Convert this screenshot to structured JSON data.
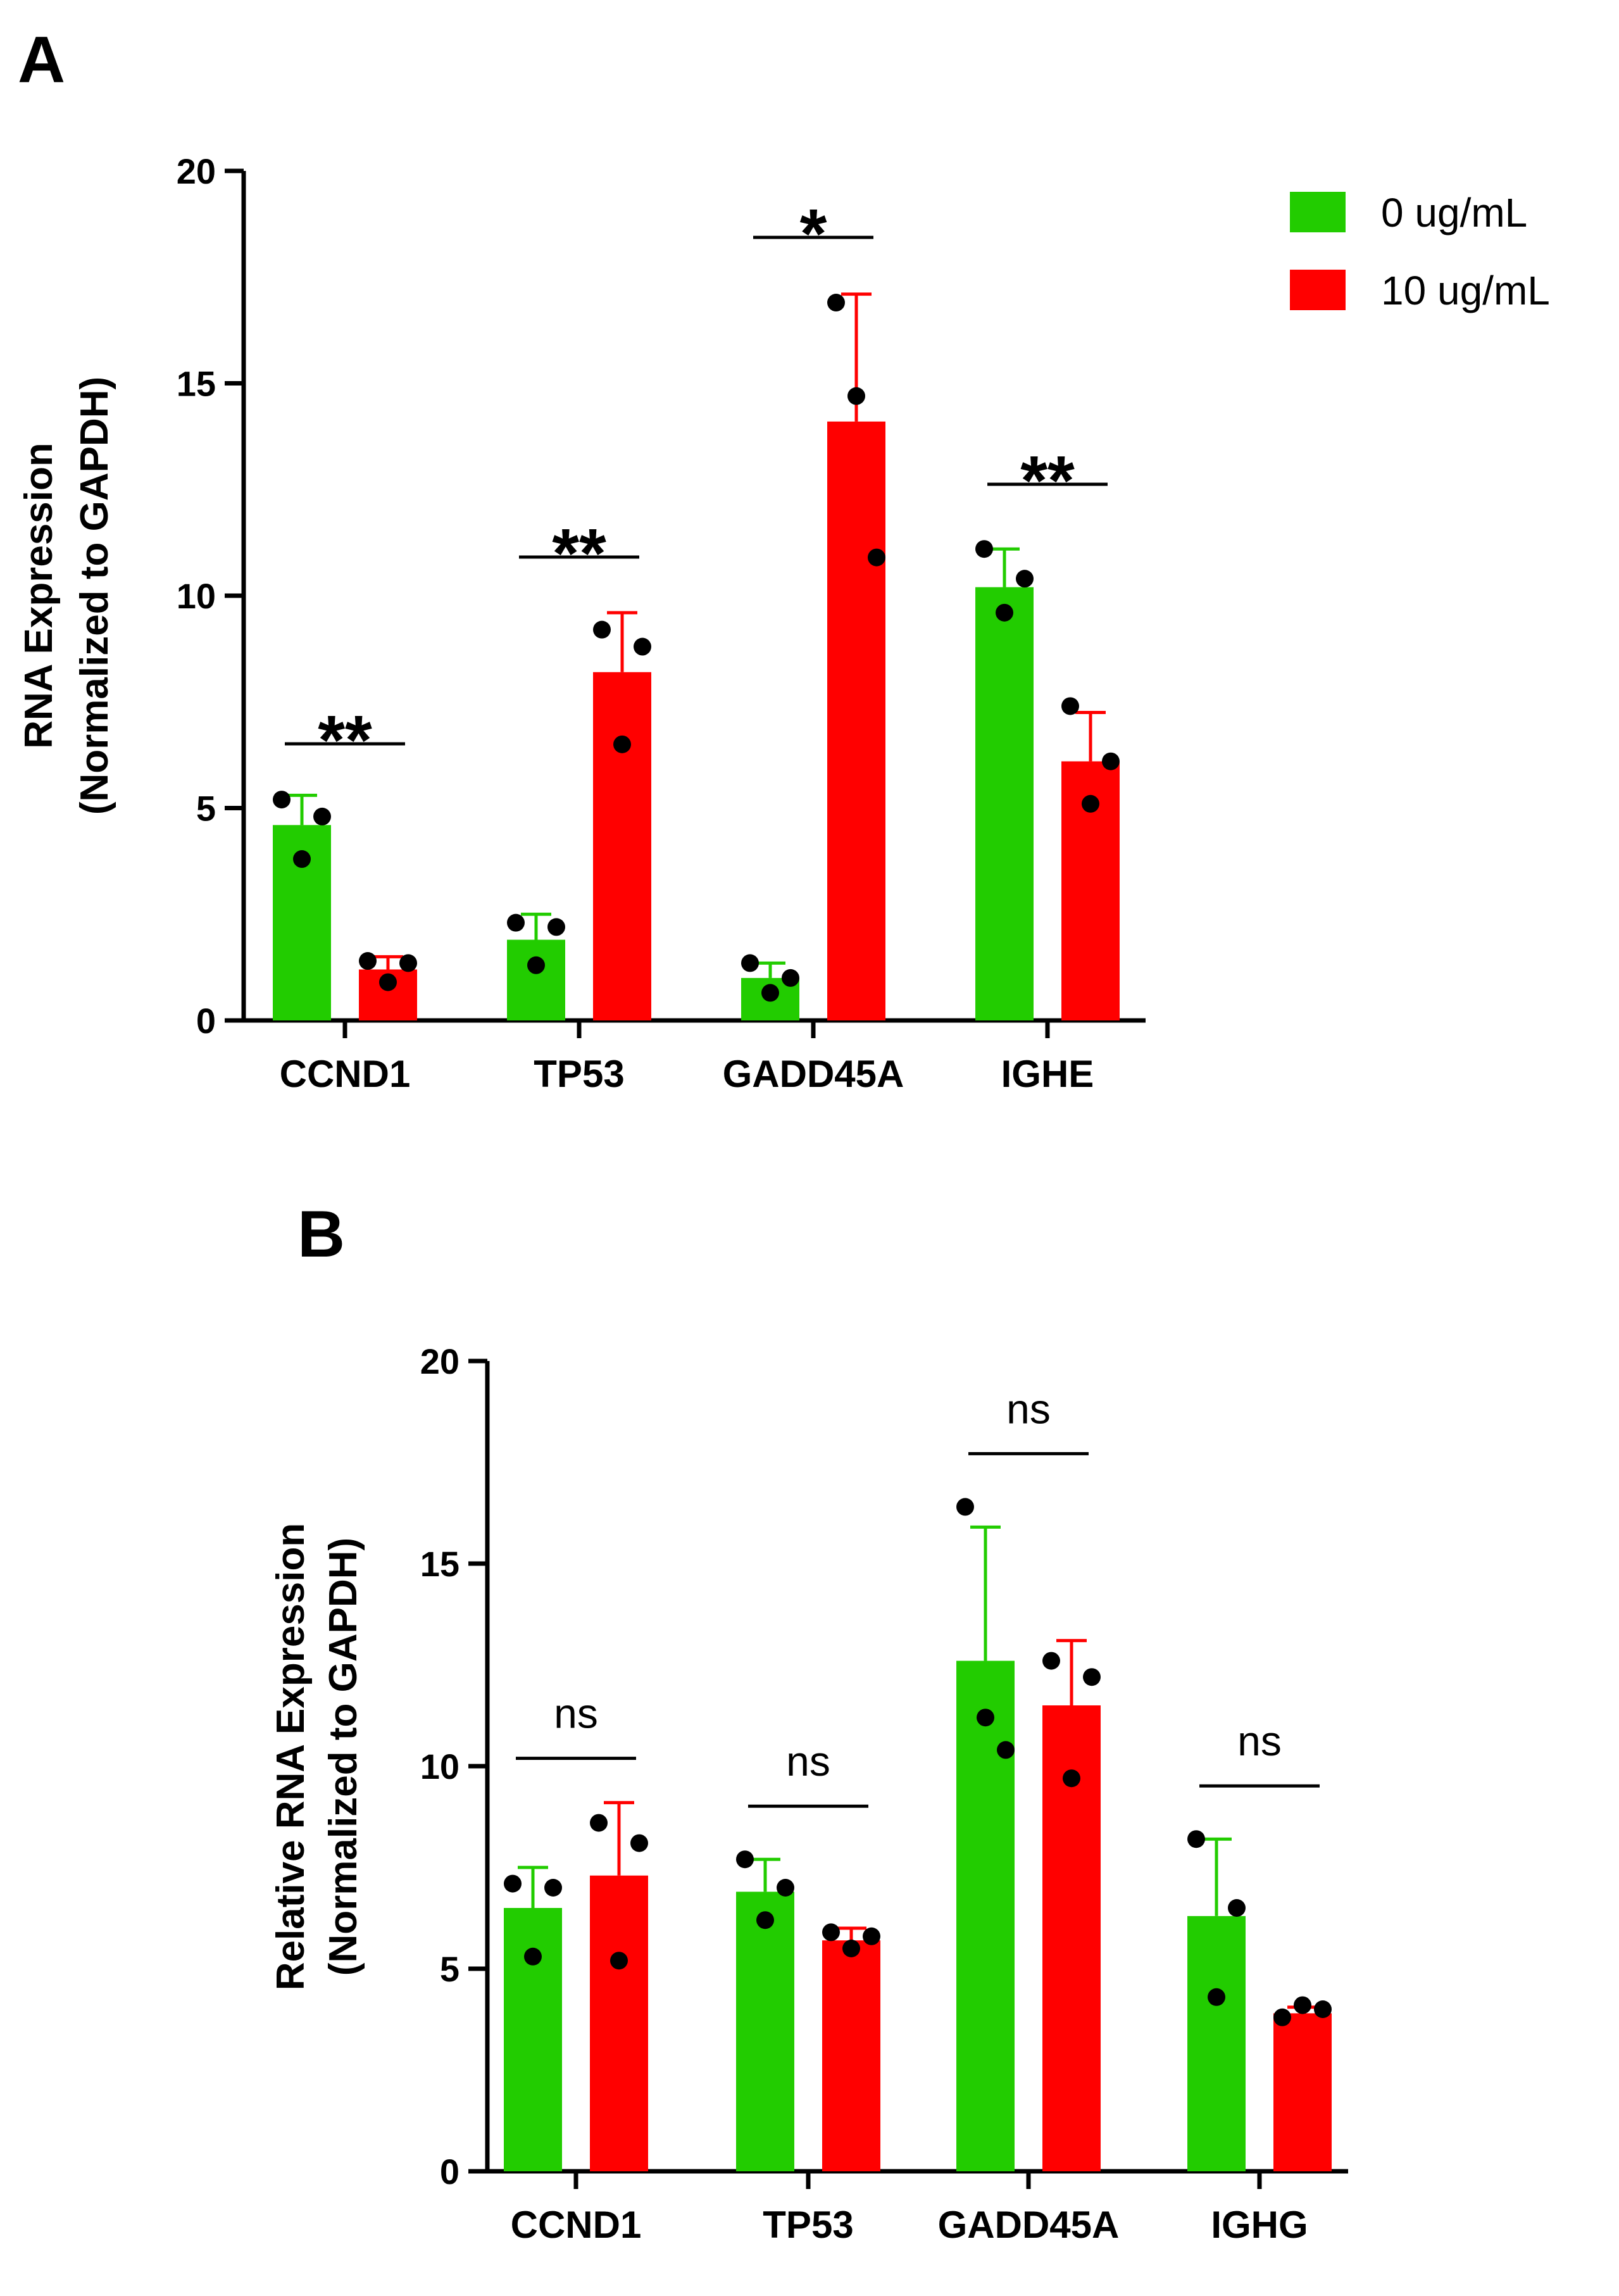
{
  "legend": {
    "items": [
      {
        "label": "0 ug/mL",
        "color": "#22cc00"
      },
      {
        "label": "10 ug/mL",
        "color": "#ff0000"
      }
    ]
  },
  "chart_data": [
    {
      "panel": "A",
      "type": "bar",
      "ylabel_line1": "RNA Expression",
      "ylabel_line2": "(Normalized to GAPDH)",
      "ylim": [
        0,
        20
      ],
      "yticks": [
        0,
        5,
        10,
        15,
        20
      ],
      "categories": [
        "CCND1",
        "TP53",
        "GADD45A",
        "IGHE"
      ],
      "series": [
        {
          "name": "0 ug/mL",
          "color": "#22cc00",
          "values": [
            4.6,
            1.9,
            1.0,
            10.2
          ],
          "errors": [
            0.7,
            0.6,
            0.35,
            0.9
          ],
          "points": [
            [
              5.2,
              3.8,
              4.8
            ],
            [
              2.3,
              1.3,
              2.2
            ],
            [
              1.35,
              0.65,
              1.0
            ],
            [
              11.1,
              9.6,
              10.4
            ]
          ]
        },
        {
          "name": "10 ug/mL",
          "color": "#ff0000",
          "values": [
            1.2,
            8.2,
            14.1,
            6.1
          ],
          "errors": [
            0.3,
            1.4,
            3.0,
            1.15
          ],
          "points": [
            [
              1.4,
              0.9,
              1.35
            ],
            [
              9.2,
              6.5,
              8.8
            ],
            [
              16.9,
              14.7,
              10.9
            ],
            [
              7.4,
              5.1,
              6.1
            ]
          ]
        }
      ],
      "significance": [
        "**",
        "**",
        "*",
        "**"
      ]
    },
    {
      "panel": "B",
      "type": "bar",
      "ylabel_line1": "Relative RNA Expression",
      "ylabel_line2": "(Normalized to GAPDH)",
      "ylim": [
        0,
        20
      ],
      "yticks": [
        0,
        5,
        10,
        15,
        20
      ],
      "categories": [
        "CCND1",
        "TP53",
        "GADD45A",
        "IGHG"
      ],
      "series": [
        {
          "name": "0 ug/mL",
          "color": "#22cc00",
          "values": [
            6.5,
            6.9,
            12.6,
            6.3
          ],
          "errors": [
            1.0,
            0.8,
            3.3,
            1.9
          ],
          "points": [
            [
              7.1,
              5.3,
              7.0
            ],
            [
              7.7,
              6.2,
              7.0
            ],
            [
              16.4,
              11.2,
              10.4
            ],
            [
              8.2,
              4.3,
              6.5
            ]
          ]
        },
        {
          "name": "10 ug/mL",
          "color": "#ff0000",
          "values": [
            7.3,
            5.7,
            11.5,
            3.9
          ],
          "errors": [
            1.8,
            0.3,
            1.6,
            0.15
          ],
          "points": [
            [
              8.6,
              5.2,
              8.1
            ],
            [
              5.9,
              5.5,
              5.8
            ],
            [
              12.6,
              9.7,
              12.2
            ],
            [
              3.8,
              4.1,
              4.0
            ]
          ]
        }
      ],
      "significance": [
        "ns",
        "ns",
        "ns",
        "ns"
      ]
    }
  ]
}
